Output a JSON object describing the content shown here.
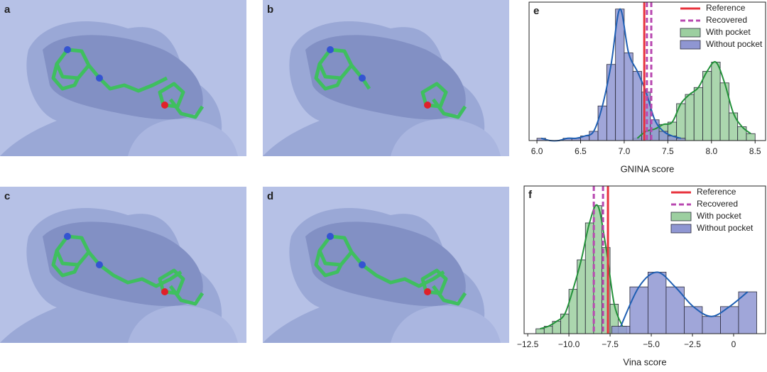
{
  "images": [
    {
      "label": "a"
    },
    {
      "label": "b"
    },
    {
      "label": "c"
    },
    {
      "label": "d"
    }
  ],
  "chart_data": [
    {
      "type": "histogram",
      "panel_label": "e",
      "xlabel": "GNINA score",
      "xlim": [
        5.91,
        8.62
      ],
      "ylim": [
        0,
        60
      ],
      "xticks": [
        {
          "value": 6,
          "label": "6.0"
        },
        6.5,
        {
          "value": 7,
          "label": "7.0"
        },
        7.5,
        {
          "value": 8,
          "label": "8.0"
        },
        8.5
      ],
      "series": [
        {
          "name": "With pocket",
          "color": "#9ccfa0",
          "curve_color": "#23913a",
          "bins": [
            7.1,
            7.2,
            7.3,
            7.4,
            7.5,
            7.6,
            7.7,
            7.8,
            7.9,
            8.0,
            8.1,
            8.2,
            8.3,
            8.4,
            8.5
          ],
          "counts": [
            1,
            4,
            5,
            7,
            8,
            16,
            20,
            23,
            30,
            34,
            25,
            12,
            6,
            3
          ]
        },
        {
          "name": "Without pocket",
          "color": "#8f96d2",
          "curve_color": "#1f5fb3",
          "bins": [
            6.0,
            6.1,
            6.2,
            6.3,
            6.4,
            6.5,
            6.6,
            6.7,
            6.8,
            6.9,
            7.0,
            7.1,
            7.2,
            7.3,
            7.4,
            7.5,
            7.6,
            7.7
          ],
          "counts": [
            1,
            0,
            0,
            1,
            1,
            2,
            4,
            15,
            33,
            57,
            38,
            30,
            21,
            9,
            4,
            2,
            1
          ]
        }
      ],
      "vlines": [
        {
          "name": "Reference",
          "color": "#e8323c",
          "style": "solid",
          "values": [
            7.23
          ]
        },
        {
          "name": "Recovered",
          "color": "#b848b0",
          "style": "dashed",
          "values": [
            7.26,
            7.31
          ]
        }
      ]
    },
    {
      "type": "histogram",
      "panel_label": "f",
      "xlabel": "Vina score",
      "xlim": [
        -12.72,
        1.94
      ],
      "ylim": [
        0,
        60
      ],
      "xticks": [
        {
          "value": -12.5,
          "label": "−12.5"
        },
        {
          "value": -10,
          "label": "−10.0"
        },
        {
          "value": -7.5,
          "label": "−7.5"
        },
        {
          "value": -5,
          "label": "−5.0"
        },
        {
          "value": -2.5,
          "label": "−2.5"
        },
        0
      ],
      "series": [
        {
          "name": "With pocket",
          "color": "#9ccfa0",
          "curve_color": "#23913a",
          "bins": [
            -12,
            -11.5,
            -11,
            -10.5,
            -10,
            -9.5,
            -9,
            -8.5,
            -8,
            -7.5,
            -7,
            -6.5
          ],
          "counts": [
            2,
            3,
            5,
            8,
            18,
            30,
            45,
            52,
            35,
            12,
            3
          ]
        },
        {
          "name": "Without pocket",
          "color": "#8f96d2",
          "curve_color": "#1f5fb3",
          "bins": [
            -7.4,
            -6.3,
            -5.2,
            -4.1,
            -3.0,
            -1.9,
            -0.8,
            0.3,
            1.4
          ],
          "counts": [
            3,
            19,
            25,
            19,
            11,
            7,
            11,
            17
          ]
        }
      ],
      "vlines": [
        {
          "name": "Reference",
          "color": "#e8323c",
          "style": "solid",
          "values": [
            -7.63
          ]
        },
        {
          "name": "Recovered",
          "color": "#b848b0",
          "style": "dashed",
          "values": [
            -8.49,
            -7.93
          ]
        }
      ]
    }
  ]
}
